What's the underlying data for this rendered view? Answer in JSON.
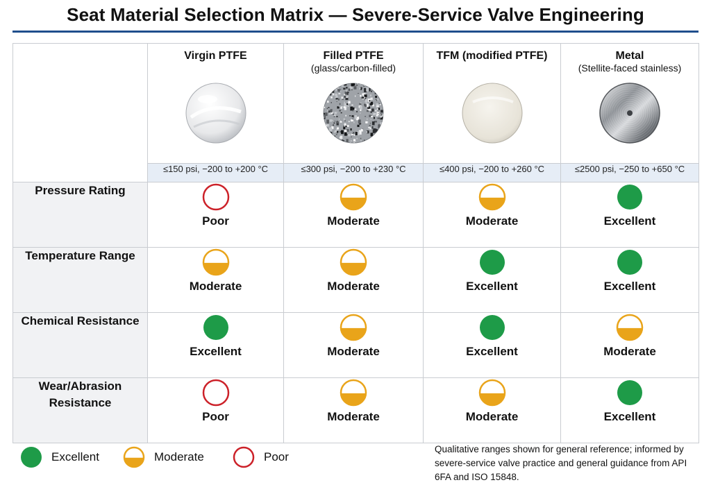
{
  "title": "Seat Material Selection Matrix — Severe-Service Valve Engineering",
  "colors": {
    "excellent": "#1e9b48",
    "moderate": "#e9a41a",
    "poor": "#cc2129",
    "title_rule": "#1f4e8c",
    "range_band": "#e6edf6",
    "label_band": "#f1f2f4"
  },
  "materials": [
    {
      "name": "Virgin PTFE",
      "subtitle": "",
      "swatch": "virgin-ptfe-swatch",
      "range": "≤150 psi, −200 to +200 °C"
    },
    {
      "name": "Filled PTFE",
      "subtitle": "(glass/carbon-filled)",
      "swatch": "filled-ptfe-swatch",
      "range": "≤300 psi, −200 to +230 °C"
    },
    {
      "name": "TFM (modified PTFE)",
      "subtitle": "",
      "swatch": "tfm-swatch",
      "range": "≤400 psi, −200 to +260 °C"
    },
    {
      "name": "Metal",
      "subtitle": "(Stellite-faced stainless)",
      "swatch": "metal-swatch",
      "range": "≤2500 psi, −250 to +650 °C"
    }
  ],
  "criteria": [
    {
      "label": "Pressure Rating",
      "ratings": [
        "Poor",
        "Moderate",
        "Moderate",
        "Excellent"
      ]
    },
    {
      "label": "Temperature Range",
      "ratings": [
        "Moderate",
        "Moderate",
        "Excellent",
        "Excellent"
      ]
    },
    {
      "label": "Chemical Resistance",
      "ratings": [
        "Excellent",
        "Moderate",
        "Excellent",
        "Moderate"
      ]
    },
    {
      "label": "Wear/Abrasion Resistance",
      "ratings": [
        "Poor",
        "Moderate",
        "Moderate",
        "Excellent"
      ]
    }
  ],
  "legend": [
    {
      "label": "Excellent",
      "icon": "filled-circle-icon"
    },
    {
      "label": "Moderate",
      "icon": "half-filled-circle-icon"
    },
    {
      "label": "Poor",
      "icon": "empty-circle-icon"
    }
  ],
  "footnote": "Qualitative ranges shown for general reference; informed by severe-service valve practice and general guidance from API 6FA and ISO 15848."
}
